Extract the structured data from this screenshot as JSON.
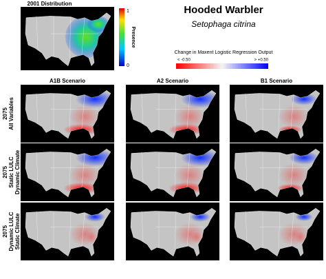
{
  "inset": {
    "title": "2001 Distribution",
    "colorbar_label": "Presence",
    "colorbar_max": "1",
    "colorbar_min": "0"
  },
  "header": {
    "title": "Hooded Warbler",
    "subtitle": "Setophaga citrina"
  },
  "legend": {
    "title": "Change in Maxent Logistic Regression Output",
    "low_label": "< -0.50",
    "high_label": "> +0.50"
  },
  "columns": [
    "A1B Scenario",
    "A2 Scenario",
    "B1 Scenario"
  ],
  "rows": [
    [
      "2075",
      "All Variables"
    ],
    [
      "2075",
      "Static LULC",
      "Dynamic Climate"
    ],
    [
      "2075",
      "Dynamic LULC",
      "Static Climate"
    ]
  ]
}
